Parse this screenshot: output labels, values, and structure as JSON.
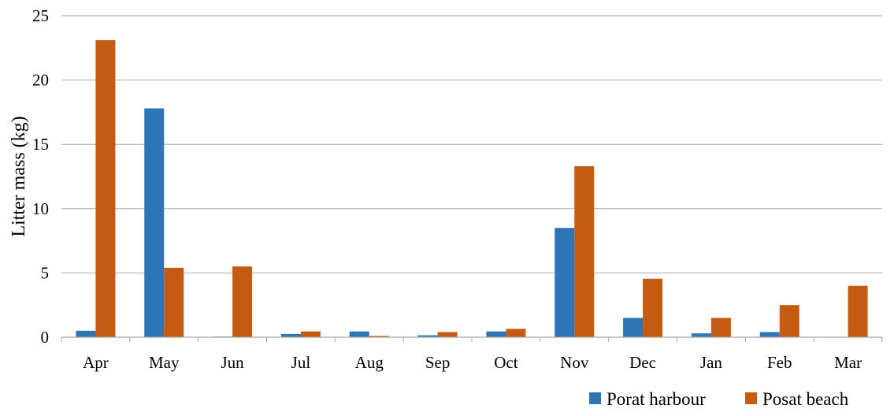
{
  "chart_data": {
    "type": "bar",
    "ylabel": "Litter mass (kg)",
    "xlabel": "",
    "ylim": [
      0,
      25
    ],
    "yticks": [
      "0",
      "5",
      "10",
      "15",
      "20",
      "25"
    ],
    "grid": "horizontal",
    "legend_position": "bottom-right",
    "categories": [
      "Apr",
      "May",
      "Jun",
      "Jul",
      "Aug",
      "Sep",
      "Oct",
      "Nov",
      "Dec",
      "Jan",
      "Feb",
      "Mar"
    ],
    "series": [
      {
        "name": "Porat harbour",
        "color": "#2e75b6",
        "values": [
          0.5,
          17.8,
          0.05,
          0.25,
          0.45,
          0.15,
          0.45,
          8.5,
          1.5,
          0.3,
          0.4,
          0
        ]
      },
      {
        "name": "Posat beach",
        "color": "#c55a11",
        "values": [
          23.1,
          5.4,
          5.5,
          0.45,
          0.1,
          0.4,
          0.65,
          13.3,
          4.55,
          1.5,
          2.5,
          4.0
        ]
      }
    ]
  }
}
